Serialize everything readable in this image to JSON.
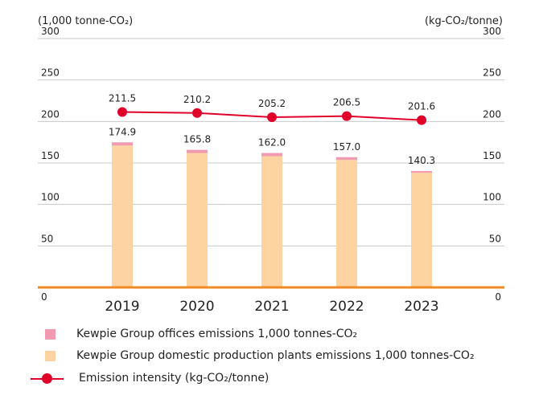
{
  "chart_data": {
    "type": "bar+line",
    "left_axis_label": "(1,000 tonne-CO₂)",
    "right_axis_label": "(kg-CO₂/tonne)",
    "categories": [
      "2019",
      "2020",
      "2021",
      "2022",
      "2023"
    ],
    "left_ylim": [
      0,
      300
    ],
    "right_ylim": [
      0,
      300
    ],
    "left_ticks": [
      "0",
      "50",
      "100",
      "150",
      "200",
      "250",
      "300"
    ],
    "right_ticks": [
      "0",
      "50",
      "100",
      "150",
      "200",
      "250",
      "300"
    ],
    "series": [
      {
        "name": "Kewpie Group domestic production plants emissions 1,000 tonnes-CO2",
        "type": "stacked-bar",
        "color": "#fcd3a1",
        "values": [
          171.0,
          162.0,
          158.2,
          153.7,
          138.2
        ]
      },
      {
        "name": "Kewpie Group offices emissions 1,000 tonnes-CO2",
        "type": "stacked-bar",
        "color": "#f19ab0",
        "values": [
          3.9,
          3.8,
          3.8,
          3.3,
          2.1
        ]
      },
      {
        "name": "Emission intensity (kg-CO₂/tonne)",
        "type": "line",
        "axis": "right",
        "color": "#e0002a",
        "values": [
          211.5,
          210.2,
          205.2,
          206.5,
          201.6
        ]
      }
    ],
    "bar_total_labels": [
      "174.9",
      "165.8",
      "162.0",
      "157.0",
      "140.3"
    ],
    "line_labels": [
      "211.5",
      "210.2",
      "205.2",
      "206.5",
      "201.6"
    ],
    "grid": true,
    "baseline_color": "#f08a24",
    "gridline_color": "#c8c8c8",
    "legend_position": "bottom"
  },
  "legend": [
    {
      "label": "Kewpie Group offices emissions 1,000 tonnes-CO₂",
      "color": "#f19ab0",
      "kind": "box"
    },
    {
      "label": "Kewpie Group domestic production plants emissions 1,000 tonnes-CO₂",
      "color": "#fcd3a1",
      "kind": "box"
    },
    {
      "label": "Emission intensity (kg-CO₂/tonne)",
      "color": "#e0002a",
      "kind": "line"
    }
  ]
}
